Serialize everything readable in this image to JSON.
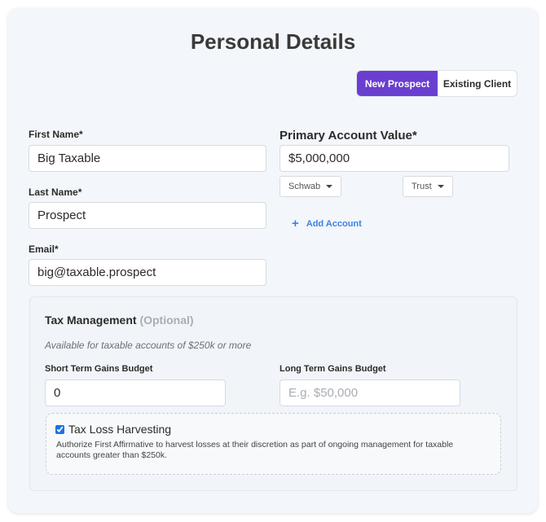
{
  "title": "Personal Details",
  "toggle": {
    "options": [
      "New Prospect",
      "Existing Client"
    ],
    "selected": "New Prospect",
    "accent": "#6a3fcf"
  },
  "fields": {
    "first_name": {
      "label": "First Name*",
      "value": "Big Taxable"
    },
    "last_name": {
      "label": "Last Name*",
      "value": "Prospect"
    },
    "email": {
      "label": "Email*",
      "value": "big@taxable.prospect"
    },
    "primary_account_value": {
      "label": "Primary Account Value*",
      "value": "$5,000,000"
    },
    "custodian": {
      "selected": "Schwab"
    },
    "account_type": {
      "selected": "Trust"
    }
  },
  "add_account": {
    "icon": "plus-icon",
    "label": "Add Account"
  },
  "tax": {
    "heading": "Tax Management",
    "optional": "(Optional)",
    "note": "Available for taxable accounts of $250k or more",
    "short_term": {
      "label": "Short Term Gains Budget",
      "value": "0"
    },
    "long_term": {
      "label": "Long Term Gains Budget",
      "value": "",
      "placeholder": "E.g. $50,000"
    },
    "tlh": {
      "label": "Tax Loss Harvesting",
      "checked": true,
      "description": "Authorize First Affirmative to harvest losses at their discretion as part of ongoing management for taxable accounts greater than $250k."
    }
  }
}
